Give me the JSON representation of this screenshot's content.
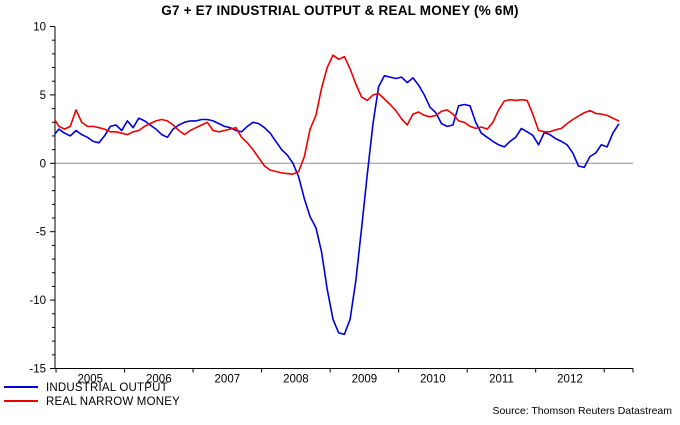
{
  "title": "G7 + E7 INDUSTRIAL OUTPUT & REAL MONEY (% 6M)",
  "source": "Source: Thomson Reuters Datastream",
  "colors": {
    "industrial_output": "#0000dd",
    "real_narrow_money": "#ee0000",
    "axis": "#000000",
    "zero_line": "#909090"
  },
  "legend": {
    "items": [
      {
        "label": "INDUSTRIAL OUTPUT",
        "color": "#0000dd"
      },
      {
        "label": "REAL NARROW MONEY",
        "color": "#ee0000"
      }
    ]
  },
  "chart_data": {
    "type": "line",
    "title": "G7 + E7 INDUSTRIAL OUTPUT & REAL MONEY (% 6M)",
    "xlabel": "",
    "ylabel": "% 6M",
    "ylim": [
      -15,
      10
    ],
    "xlim": [
      2004.985,
      2013.42
    ],
    "y_major_ticks": [
      10,
      5,
      0,
      -5,
      -10,
      -15
    ],
    "y_minor_step": 1,
    "x_year_ticks": [
      2005,
      2006,
      2007,
      2008,
      2009,
      2010,
      2011,
      2012,
      2013
    ],
    "x_tick_labels": [
      "2005",
      "2006",
      "2007",
      "2008",
      "2009",
      "2010",
      "2011",
      "2012"
    ],
    "grid": false,
    "zero_line": true,
    "legend_position": "bottom-left",
    "series": [
      {
        "name": "INDUSTRIAL OUTPUT",
        "color": "#0000dd",
        "points": [
          [
            2004.985,
            2.15
          ],
          [
            2005.042,
            2.5
          ],
          [
            2005.125,
            2.2
          ],
          [
            2005.208,
            2.0
          ],
          [
            2005.292,
            2.4
          ],
          [
            2005.375,
            2.1
          ],
          [
            2005.458,
            1.9
          ],
          [
            2005.542,
            1.6
          ],
          [
            2005.625,
            1.5
          ],
          [
            2005.708,
            2.0
          ],
          [
            2005.792,
            2.7
          ],
          [
            2005.875,
            2.8
          ],
          [
            2005.958,
            2.4
          ],
          [
            2006.042,
            3.1
          ],
          [
            2006.125,
            2.6
          ],
          [
            2006.208,
            3.3
          ],
          [
            2006.292,
            3.1
          ],
          [
            2006.375,
            2.8
          ],
          [
            2006.458,
            2.5
          ],
          [
            2006.542,
            2.1
          ],
          [
            2006.625,
            1.9
          ],
          [
            2006.708,
            2.5
          ],
          [
            2006.792,
            2.8
          ],
          [
            2006.875,
            3.0
          ],
          [
            2006.958,
            3.1
          ],
          [
            2007.042,
            3.1
          ],
          [
            2007.125,
            3.2
          ],
          [
            2007.208,
            3.2
          ],
          [
            2007.292,
            3.1
          ],
          [
            2007.375,
            2.9
          ],
          [
            2007.458,
            2.7
          ],
          [
            2007.542,
            2.6
          ],
          [
            2007.625,
            2.4
          ],
          [
            2007.708,
            2.3
          ],
          [
            2007.792,
            2.7
          ],
          [
            2007.875,
            3.0
          ],
          [
            2007.958,
            2.9
          ],
          [
            2008.042,
            2.6
          ],
          [
            2008.125,
            2.2
          ],
          [
            2008.208,
            1.6
          ],
          [
            2008.292,
            1.0
          ],
          [
            2008.375,
            0.6
          ],
          [
            2008.458,
            0.0
          ],
          [
            2008.542,
            -1.0
          ],
          [
            2008.625,
            -2.6
          ],
          [
            2008.708,
            -3.9
          ],
          [
            2008.792,
            -4.7
          ],
          [
            2008.875,
            -6.5
          ],
          [
            2008.958,
            -9.2
          ],
          [
            2009.042,
            -11.4
          ],
          [
            2009.125,
            -12.4
          ],
          [
            2009.208,
            -12.5
          ],
          [
            2009.292,
            -11.4
          ],
          [
            2009.375,
            -8.6
          ],
          [
            2009.458,
            -4.8
          ],
          [
            2009.542,
            -0.8
          ],
          [
            2009.625,
            2.9
          ],
          [
            2009.708,
            5.6
          ],
          [
            2009.792,
            6.4
          ],
          [
            2009.875,
            6.3
          ],
          [
            2009.958,
            6.2
          ],
          [
            2010.042,
            6.3
          ],
          [
            2010.125,
            5.9
          ],
          [
            2010.208,
            6.25
          ],
          [
            2010.292,
            5.7
          ],
          [
            2010.375,
            5.0
          ],
          [
            2010.458,
            4.1
          ],
          [
            2010.542,
            3.7
          ],
          [
            2010.625,
            2.9
          ],
          [
            2010.708,
            2.7
          ],
          [
            2010.792,
            2.8
          ],
          [
            2010.875,
            4.2
          ],
          [
            2010.958,
            4.3
          ],
          [
            2011.042,
            4.2
          ],
          [
            2011.125,
            3.0
          ],
          [
            2011.208,
            2.2
          ],
          [
            2011.292,
            1.9
          ],
          [
            2011.375,
            1.6
          ],
          [
            2011.458,
            1.35
          ],
          [
            2011.542,
            1.2
          ],
          [
            2011.625,
            1.6
          ],
          [
            2011.708,
            1.9
          ],
          [
            2011.792,
            2.55
          ],
          [
            2011.875,
            2.3
          ],
          [
            2011.958,
            2.05
          ],
          [
            2012.042,
            1.35
          ],
          [
            2012.125,
            2.25
          ],
          [
            2012.208,
            2.1
          ],
          [
            2012.292,
            1.8
          ],
          [
            2012.375,
            1.6
          ],
          [
            2012.458,
            1.35
          ],
          [
            2012.542,
            0.75
          ],
          [
            2012.625,
            -0.2
          ],
          [
            2012.708,
            -0.3
          ],
          [
            2012.792,
            0.5
          ],
          [
            2012.875,
            0.75
          ],
          [
            2012.958,
            1.35
          ],
          [
            2013.042,
            1.2
          ],
          [
            2013.125,
            2.2
          ],
          [
            2013.21,
            2.85
          ]
        ]
      },
      {
        "name": "REAL NARROW MONEY",
        "color": "#ee0000",
        "points": [
          [
            2004.985,
            3.15
          ],
          [
            2005.042,
            2.7
          ],
          [
            2005.125,
            2.5
          ],
          [
            2005.208,
            2.7
          ],
          [
            2005.292,
            3.9
          ],
          [
            2005.375,
            3.0
          ],
          [
            2005.458,
            2.7
          ],
          [
            2005.542,
            2.7
          ],
          [
            2005.625,
            2.6
          ],
          [
            2005.708,
            2.5
          ],
          [
            2005.792,
            2.3
          ],
          [
            2005.875,
            2.3
          ],
          [
            2005.958,
            2.2
          ],
          [
            2006.042,
            2.1
          ],
          [
            2006.125,
            2.3
          ],
          [
            2006.208,
            2.4
          ],
          [
            2006.292,
            2.7
          ],
          [
            2006.375,
            2.9
          ],
          [
            2006.458,
            3.1
          ],
          [
            2006.542,
            3.2
          ],
          [
            2006.625,
            3.1
          ],
          [
            2006.708,
            2.8
          ],
          [
            2006.792,
            2.4
          ],
          [
            2006.875,
            2.1
          ],
          [
            2006.958,
            2.4
          ],
          [
            2007.042,
            2.6
          ],
          [
            2007.125,
            2.8
          ],
          [
            2007.208,
            3.0
          ],
          [
            2007.292,
            2.4
          ],
          [
            2007.375,
            2.3
          ],
          [
            2007.458,
            2.4
          ],
          [
            2007.542,
            2.5
          ],
          [
            2007.625,
            2.6
          ],
          [
            2007.708,
            1.9
          ],
          [
            2007.792,
            1.5
          ],
          [
            2007.875,
            1.0
          ],
          [
            2007.958,
            0.4
          ],
          [
            2008.042,
            -0.2
          ],
          [
            2008.125,
            -0.5
          ],
          [
            2008.208,
            -0.6
          ],
          [
            2008.292,
            -0.7
          ],
          [
            2008.375,
            -0.75
          ],
          [
            2008.458,
            -0.8
          ],
          [
            2008.542,
            -0.6
          ],
          [
            2008.625,
            0.5
          ],
          [
            2008.708,
            2.5
          ],
          [
            2008.792,
            3.5
          ],
          [
            2008.875,
            5.5
          ],
          [
            2008.958,
            7.0
          ],
          [
            2009.042,
            7.9
          ],
          [
            2009.125,
            7.6
          ],
          [
            2009.208,
            7.8
          ],
          [
            2009.292,
            6.9
          ],
          [
            2009.375,
            5.8
          ],
          [
            2009.458,
            4.85
          ],
          [
            2009.542,
            4.6
          ],
          [
            2009.625,
            5.0
          ],
          [
            2009.708,
            5.1
          ],
          [
            2009.792,
            4.7
          ],
          [
            2009.875,
            4.3
          ],
          [
            2009.958,
            3.85
          ],
          [
            2010.042,
            3.25
          ],
          [
            2010.125,
            2.8
          ],
          [
            2010.208,
            3.6
          ],
          [
            2010.292,
            3.75
          ],
          [
            2010.375,
            3.5
          ],
          [
            2010.458,
            3.4
          ],
          [
            2010.542,
            3.5
          ],
          [
            2010.625,
            3.8
          ],
          [
            2010.708,
            3.9
          ],
          [
            2010.792,
            3.6
          ],
          [
            2010.875,
            3.1
          ],
          [
            2010.958,
            3.0
          ],
          [
            2011.042,
            2.7
          ],
          [
            2011.125,
            2.55
          ],
          [
            2011.208,
            2.65
          ],
          [
            2011.292,
            2.5
          ],
          [
            2011.375,
            3.0
          ],
          [
            2011.458,
            3.9
          ],
          [
            2011.542,
            4.55
          ],
          [
            2011.625,
            4.65
          ],
          [
            2011.708,
            4.6
          ],
          [
            2011.792,
            4.65
          ],
          [
            2011.875,
            4.6
          ],
          [
            2011.958,
            3.6
          ],
          [
            2012.042,
            2.4
          ],
          [
            2012.125,
            2.3
          ],
          [
            2012.208,
            2.3
          ],
          [
            2012.292,
            2.45
          ],
          [
            2012.375,
            2.55
          ],
          [
            2012.458,
            2.9
          ],
          [
            2012.542,
            3.2
          ],
          [
            2012.625,
            3.45
          ],
          [
            2012.708,
            3.7
          ],
          [
            2012.792,
            3.85
          ],
          [
            2012.875,
            3.65
          ],
          [
            2012.958,
            3.6
          ],
          [
            2013.042,
            3.5
          ],
          [
            2013.125,
            3.3
          ],
          [
            2013.21,
            3.1
          ]
        ]
      }
    ]
  }
}
